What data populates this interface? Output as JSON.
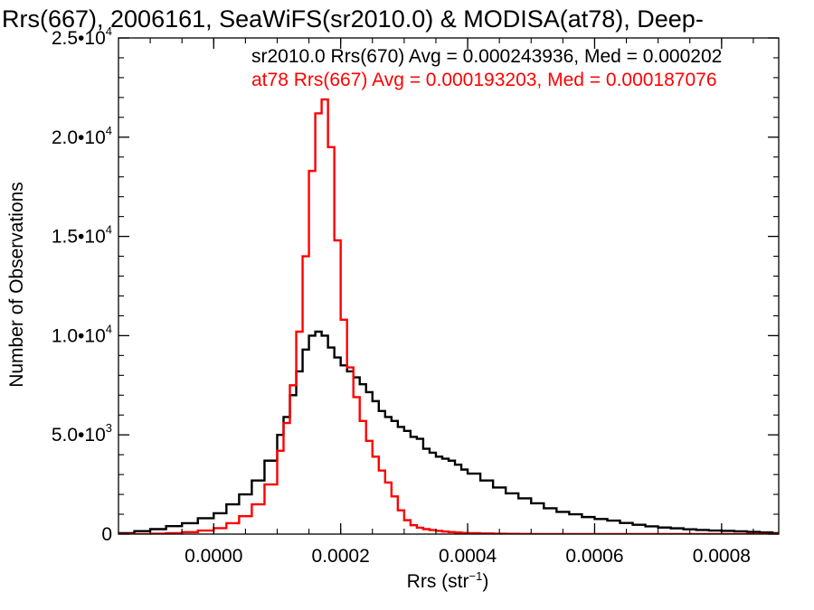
{
  "chart_data": {
    "type": "line",
    "title": "Rrs(667), 2006161, SeaWiFS(sr2010.0) & MODISA(at78), Deep-",
    "xlabel_main": "Rrs (str",
    "xlabel_sup": "−1",
    "xlabel_close": ")",
    "ylabel": "Number of Observations",
    "xlim": [
      -0.00015,
      0.00089
    ],
    "ylim": [
      0,
      25000
    ],
    "x_ticks": [
      {
        "value": 0.0,
        "label": "0.0000"
      },
      {
        "value": 0.0002,
        "label": "0.0002"
      },
      {
        "value": 0.0004,
        "label": "0.0004"
      },
      {
        "value": 0.0006,
        "label": "0.0006"
      },
      {
        "value": 0.0008,
        "label": "0.0008"
      }
    ],
    "y_ticks": [
      {
        "value": 0,
        "mant": "0",
        "exp": ""
      },
      {
        "value": 5000,
        "mant": "5.0•10",
        "exp": "3"
      },
      {
        "value": 10000,
        "mant": "1.0•10",
        "exp": "4"
      },
      {
        "value": 15000,
        "mant": "1.5•10",
        "exp": "4"
      },
      {
        "value": 20000,
        "mant": "2.0•10",
        "exp": "4"
      },
      {
        "value": 25000,
        "mant": "2.5•10",
        "exp": "4"
      }
    ],
    "grid": false,
    "histogram": true,
    "series": [
      {
        "name": "sr2010.0 Rrs(670) Avg = 0.000243936, Med = 0.000202",
        "color": "#000000",
        "x": [
          -0.00015,
          -0.000125,
          -0.0001,
          -7.5e-05,
          -5e-05,
          -2.5e-05,
          0.0,
          2e-05,
          4e-05,
          6e-05,
          8e-05,
          0.0001,
          0.00011,
          0.00012,
          0.00013,
          0.00014,
          0.00015,
          0.00016,
          0.00017,
          0.00018,
          0.00019,
          0.0002,
          0.00021,
          0.00022,
          0.00023,
          0.00024,
          0.00025,
          0.00026,
          0.00027,
          0.00028,
          0.00029,
          0.0003,
          0.00031,
          0.00032,
          0.00033,
          0.00034,
          0.00035,
          0.00036,
          0.00037,
          0.00038,
          0.00039,
          0.0004,
          0.00042,
          0.00044,
          0.00046,
          0.00048,
          0.0005,
          0.00052,
          0.00054,
          0.00056,
          0.00058,
          0.0006,
          0.00062,
          0.00064,
          0.00066,
          0.00068,
          0.0007,
          0.00072,
          0.00074,
          0.00076,
          0.00078,
          0.0008,
          0.00082,
          0.00084,
          0.00086,
          0.00088
        ],
        "y": [
          50,
          150,
          250,
          400,
          550,
          800,
          1050,
          1500,
          2000,
          2700,
          3700,
          5000,
          5900,
          7000,
          8200,
          9300,
          10000,
          10200,
          10000,
          9400,
          8900,
          8500,
          8200,
          7900,
          7550,
          7150,
          6700,
          6200,
          5900,
          5700,
          5400,
          5200,
          4900,
          4800,
          4300,
          4100,
          3900,
          3800,
          3700,
          3500,
          3250,
          3050,
          2700,
          2350,
          2050,
          1800,
          1550,
          1300,
          1120,
          1000,
          860,
          760,
          680,
          560,
          470,
          390,
          330,
          290,
          240,
          210,
          180,
          160,
          140,
          110,
          80,
          50
        ]
      },
      {
        "name": "at78 Rrs(667) Avg = 0.000193203, Med = 0.000187076",
        "color": "#ff0000",
        "x": [
          -0.00015,
          -0.000125,
          -0.0001,
          -7.5e-05,
          -5e-05,
          -2.5e-05,
          0.0,
          2e-05,
          4e-05,
          6e-05,
          8e-05,
          0.0001,
          0.00011,
          0.00012,
          0.00013,
          0.00014,
          0.00015,
          0.00016,
          0.00017,
          0.00018,
          0.00019,
          0.0002,
          0.00021,
          0.00022,
          0.00023,
          0.00024,
          0.00025,
          0.00026,
          0.00027,
          0.00028,
          0.00029,
          0.0003,
          0.00031,
          0.00032,
          0.00033,
          0.00034,
          0.00035,
          0.00036,
          0.00037,
          0.00038,
          0.00039,
          0.0004,
          0.00042,
          0.00044,
          0.00046,
          0.00048,
          0.0005,
          0.00052,
          0.00054,
          0.00056,
          0.00058,
          0.0006,
          0.00062,
          0.00064,
          0.00066,
          0.00068,
          0.0007,
          0.00072,
          0.00074,
          0.00076,
          0.00078,
          0.0008,
          0.00082,
          0.00084,
          0.00086,
          0.00088
        ],
        "y": [
          0,
          0,
          20,
          50,
          100,
          180,
          300,
          550,
          900,
          1500,
          2500,
          4200,
          5600,
          7500,
          10200,
          14000,
          18300,
          21200,
          21900,
          19500,
          14800,
          10800,
          8400,
          6900,
          5700,
          4700,
          3900,
          3200,
          2600,
          1900,
          1200,
          700,
          450,
          320,
          250,
          200,
          160,
          130,
          100,
          80,
          60,
          45,
          30,
          20,
          12,
          8,
          5,
          3,
          0,
          0,
          0,
          0,
          0,
          0,
          0,
          0,
          0,
          0,
          0,
          0,
          0,
          0,
          0,
          0,
          0,
          0
        ]
      }
    ]
  }
}
